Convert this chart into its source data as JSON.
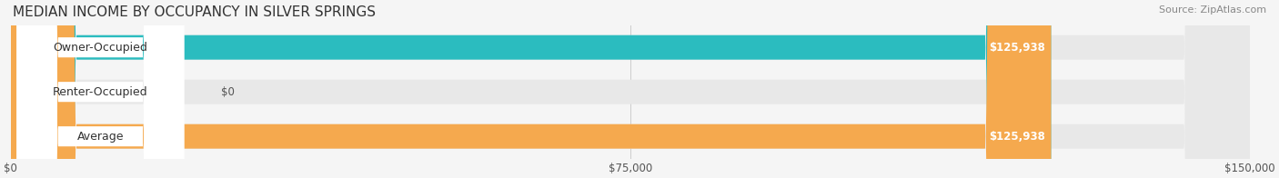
{
  "title": "MEDIAN INCOME BY OCCUPANCY IN SILVER SPRINGS",
  "source": "Source: ZipAtlas.com",
  "categories": [
    "Owner-Occupied",
    "Renter-Occupied",
    "Average"
  ],
  "values": [
    125938,
    0,
    125938
  ],
  "bar_colors": [
    "#2bbcbf",
    "#c4a8d4",
    "#f5a94e"
  ],
  "label_colors": [
    "#2bbcbf",
    "#c4a8d4",
    "#f5a94e"
  ],
  "value_labels": [
    "$125,938",
    "$0",
    "$125,938"
  ],
  "x_ticks": [
    0,
    75000,
    150000
  ],
  "x_tick_labels": [
    "$0",
    "$75,000",
    "$150,000"
  ],
  "xlim": [
    0,
    150000
  ],
  "bar_height": 0.55,
  "bg_color": "#f5f5f5",
  "bar_bg_color": "#e8e8e8",
  "title_fontsize": 11,
  "source_fontsize": 8,
  "label_fontsize": 9,
  "tick_fontsize": 8.5
}
